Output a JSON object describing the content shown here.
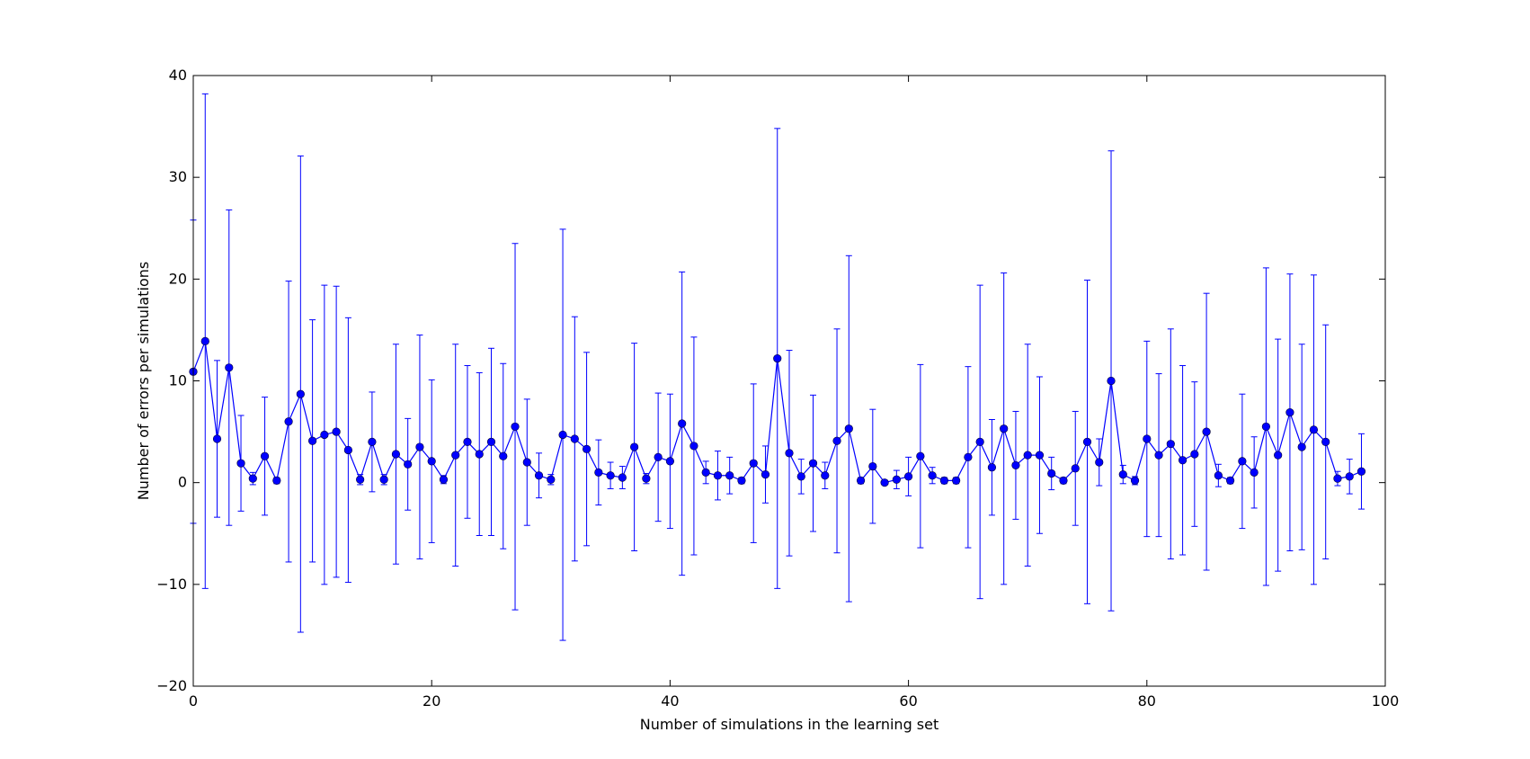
{
  "chart_data": {
    "type": "line",
    "title": "",
    "xlabel": "Number of simulations in the learning set",
    "ylabel": "Number of errors per simulations",
    "xlim": [
      0,
      100
    ],
    "ylim": [
      -20,
      40
    ],
    "xticks": [
      0,
      20,
      40,
      60,
      80,
      100
    ],
    "yticks": [
      -20,
      -10,
      0,
      10,
      20,
      30,
      40
    ],
    "x_tick_labels": [
      "0",
      "20",
      "40",
      "60",
      "80",
      "100"
    ],
    "y_tick_labels": [
      "−20",
      "−10",
      "0",
      "10",
      "20",
      "30",
      "40"
    ],
    "grid": false,
    "color": "#0000ff",
    "marker": "circle",
    "error_bars": true,
    "series": [
      {
        "x": [
          0,
          1,
          2,
          3,
          4,
          5,
          6,
          7,
          8,
          9,
          10,
          11,
          12,
          13,
          14,
          15,
          16,
          17,
          18,
          19,
          20,
          21,
          22,
          23,
          24,
          25,
          26,
          27,
          28,
          29,
          30,
          31,
          32,
          33,
          34,
          35,
          36,
          37,
          38,
          39,
          40,
          41,
          42,
          43,
          44,
          45,
          46,
          47,
          48,
          49,
          50,
          51,
          52,
          53,
          54,
          55,
          56,
          57,
          58,
          59,
          60,
          61,
          62,
          63,
          64,
          65,
          66,
          67,
          68,
          69,
          70,
          71,
          72,
          73,
          74,
          75,
          76,
          77,
          78,
          79,
          80,
          81,
          82,
          83,
          84,
          85,
          86,
          87,
          88,
          89,
          90,
          91,
          92,
          93,
          94,
          95,
          96,
          97,
          98
        ],
        "y": [
          10.9,
          13.9,
          4.3,
          11.3,
          1.9,
          0.4,
          2.6,
          0.2,
          6.0,
          8.7,
          4.1,
          4.7,
          5.0,
          3.2,
          0.3,
          4.0,
          0.3,
          2.8,
          1.8,
          3.5,
          2.1,
          0.3,
          2.7,
          4.0,
          2.8,
          4.0,
          2.6,
          5.5,
          2.0,
          0.7,
          0.3,
          4.7,
          4.3,
          3.3,
          1.0,
          0.7,
          0.5,
          3.5,
          0.4,
          2.5,
          2.1,
          5.8,
          3.6,
          1.0,
          0.7,
          0.7,
          0.2,
          1.9,
          0.8,
          12.2,
          2.9,
          0.6,
          1.9,
          0.7,
          4.1,
          5.3,
          0.2,
          1.6,
          0.0,
          0.3,
          0.6,
          2.6,
          0.7,
          0.2,
          0.2,
          2.5,
          4.0,
          1.5,
          5.3,
          1.7,
          2.7,
          2.7,
          0.9,
          0.2,
          1.4,
          4.0,
          2.0,
          10.0,
          0.8,
          0.2,
          4.3,
          2.7,
          3.8,
          2.2,
          2.8,
          5.0,
          0.7,
          0.2,
          2.1,
          1.0,
          5.5,
          2.7,
          6.9,
          3.5,
          5.2,
          4.0,
          0.4,
          0.6,
          1.1
        ],
        "err": [
          14.9,
          24.3,
          7.7,
          15.5,
          4.7,
          0.6,
          5.8,
          0.3,
          13.8,
          23.4,
          11.9,
          14.7,
          14.3,
          13.0,
          0.5,
          4.9,
          0.5,
          10.8,
          4.5,
          11.0,
          8.0,
          0.4,
          10.9,
          7.5,
          8.0,
          9.2,
          9.1,
          18.0,
          6.2,
          2.2,
          0.5,
          20.2,
          12.0,
          9.5,
          3.2,
          1.3,
          1.1,
          10.2,
          0.5,
          6.3,
          6.6,
          14.9,
          10.7,
          1.1,
          2.4,
          1.8,
          0.3,
          7.8,
          2.8,
          22.6,
          10.1,
          1.7,
          6.7,
          1.3,
          11.0,
          17.0,
          0.3,
          5.6,
          0.1,
          0.9,
          1.9,
          9.0,
          0.8,
          0.3,
          0.3,
          8.9,
          15.4,
          4.7,
          15.3,
          5.3,
          10.9,
          7.7,
          1.6,
          0.3,
          5.6,
          15.9,
          2.3,
          22.6,
          0.9,
          0.4,
          9.6,
          8.0,
          11.3,
          9.3,
          7.1,
          13.6,
          1.1,
          0.3,
          6.6,
          3.5,
          15.6,
          11.4,
          13.6,
          10.1,
          15.2,
          11.5,
          0.7,
          1.7,
          3.7
        ]
      }
    ]
  }
}
